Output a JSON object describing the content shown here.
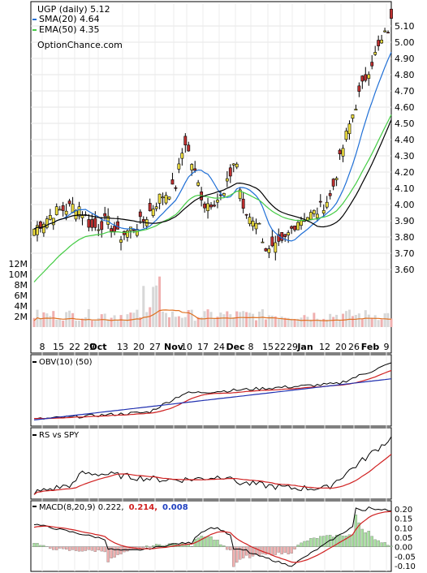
{
  "chart_data": [
    {
      "type": "candlestick",
      "title": "UGP (daily) 5.12",
      "legend": [
        {
          "name": "SMA(20) 4.64",
          "color": "#1f6fd6"
        },
        {
          "name": "EMA(50) 4.35",
          "color": "#44cc44"
        }
      ],
      "watermark": "OptionChance.com",
      "price_axis": {
        "ticks": [
          "5.10",
          "5.00",
          "4.90",
          "4.80",
          "4.70",
          "4.60",
          "4.50",
          "4.40",
          "4.30",
          "4.20",
          "4.10",
          "4.00",
          "3.90",
          "3.80",
          "3.70",
          "3.60"
        ],
        "range": [
          3.6,
          5.1
        ]
      },
      "volume_axis": {
        "ticks": [
          "12M",
          "10M",
          "8M",
          "6M",
          "4M",
          "2M"
        ]
      },
      "x_labels": [
        "8",
        "15",
        "22",
        "29",
        "Oct",
        "13",
        "20",
        "27",
        "Nov",
        "10",
        "17",
        "24",
        "Dec",
        "8",
        "15",
        "22",
        "29",
        "Jan",
        "12",
        "20",
        "26",
        "Feb",
        "9"
      ],
      "colors": {
        "up": "#f0e040",
        "down": "#c03030",
        "wick": "#000000",
        "volume_up": "#d8d8d8",
        "volume_down": "#f0b0b0",
        "volume_ma": "#e07020"
      }
    },
    {
      "type": "line",
      "legend": [
        {
          "name": "OBV(10) (50)",
          "color": "#000000"
        }
      ],
      "colors": {
        "obv": "#000000",
        "ma1": "#d02020",
        "ma2": "#2030b0"
      }
    },
    {
      "type": "line",
      "legend": [
        {
          "name": "RS vs SPY",
          "color": "#000000"
        }
      ],
      "colors": {
        "rs": "#000000",
        "ma": "#d02020"
      }
    },
    {
      "type": "macd",
      "legend": [
        {
          "name": "MACD(8,20,9) 0.222,",
          "color": "#000000"
        },
        {
          "name": "0.214,",
          "color": "#d02020"
        },
        {
          "name": "0.008",
          "color": "#2040c0"
        }
      ],
      "y_axis": {
        "ticks": [
          "0.20",
          "0.15",
          "0.10",
          "0.05",
          "0.00",
          "-0.05",
          "-0.10"
        ],
        "range": [
          -0.1,
          0.2
        ]
      },
      "colors": {
        "macd": "#000000",
        "signal": "#d02020",
        "hist_pos": "#a8e0a0",
        "hist_neg": "#f0b0b0"
      }
    }
  ]
}
